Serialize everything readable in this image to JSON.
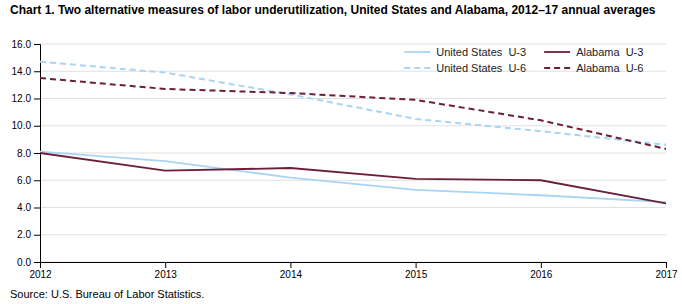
{
  "chart_data": {
    "type": "line",
    "title": "Chart 1. Two alternative measures of labor underutilization, United States and Alabama, 2012–17 annual averages",
    "source": "Source: U.S. Bureau of Labor Statistics.",
    "x": [
      2012,
      2013,
      2014,
      2015,
      2016,
      2017
    ],
    "xlim": [
      2012,
      2017
    ],
    "xticks": [
      2012,
      2013,
      2014,
      2015,
      2016,
      2017
    ],
    "ylim": [
      0,
      16
    ],
    "yticks": [
      {
        "value": 0,
        "label": "0.0"
      },
      {
        "value": 2,
        "label": "2.0"
      },
      {
        "value": 4,
        "label": "4.0"
      },
      {
        "value": 6,
        "label": "6.0"
      },
      {
        "value": 8,
        "label": "8.0"
      },
      {
        "value": 10,
        "label": "10.0"
      },
      {
        "value": 12,
        "label": "12.0"
      },
      {
        "value": 14,
        "label": "14.0"
      },
      {
        "value": 16,
        "label": "16.0"
      }
    ],
    "grid": true,
    "legend": "upper right",
    "series": [
      {
        "name": "United States  U-3",
        "color": "#a8d4f5",
        "line_style": "solid",
        "values": [
          8.1,
          7.4,
          6.2,
          5.3,
          4.9,
          4.4
        ]
      },
      {
        "name": "Alabama  U-3",
        "color": "#6b1f3a",
        "line_style": "solid",
        "values": [
          8.0,
          6.7,
          6.9,
          6.1,
          6.0,
          4.3
        ]
      },
      {
        "name": "United States  U-6",
        "color": "#a8d4f5",
        "line_style": "dashed",
        "values": [
          14.7,
          13.9,
          12.3,
          10.5,
          9.6,
          8.6
        ]
      },
      {
        "name": "Alabama  U-6",
        "color": "#6b1f3a",
        "line_style": "dashed",
        "values": [
          13.5,
          12.7,
          12.4,
          11.9,
          10.4,
          8.3
        ]
      }
    ]
  }
}
